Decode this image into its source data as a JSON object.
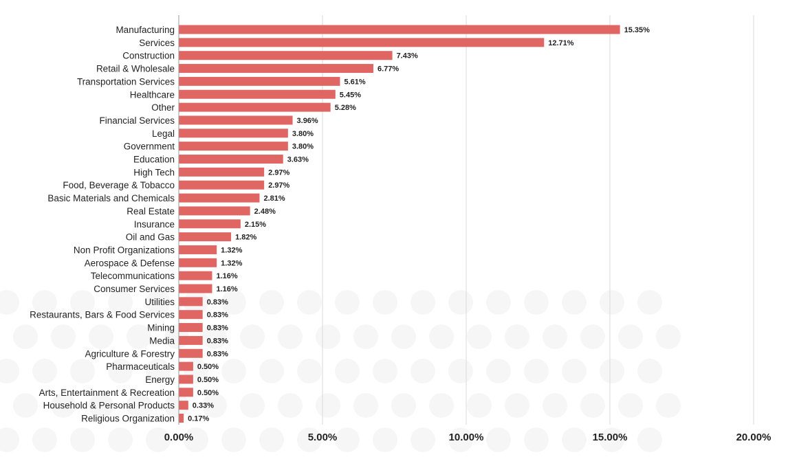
{
  "colors": {
    "bar": "#e06664",
    "grid": "#d9d9d9",
    "axis": "#9a9a9a",
    "text": "#222222"
  },
  "chart_data": {
    "type": "bar",
    "orientation": "horizontal",
    "title": "",
    "xlabel": "",
    "ylabel": "",
    "xlim": [
      0,
      20
    ],
    "x_ticks": [
      0,
      5,
      10,
      15,
      20
    ],
    "x_tick_labels": [
      "0.00%",
      "5.00%",
      "10.00%",
      "15.00%",
      "20.00%"
    ],
    "grid": "vertical",
    "legend": "none",
    "categories": [
      "Manufacturing",
      "Services",
      "Construction",
      "Retail & Wholesale",
      "Transportation Services",
      "Healthcare",
      "Other",
      "Financial Services",
      "Legal",
      "Government",
      "Education",
      "High Tech",
      "Food, Beverage & Tobacco",
      "Basic Materials and Chemicals",
      "Real Estate",
      "Insurance",
      "Oil and Gas",
      "Non Profit Organizations",
      "Aerospace & Defense",
      "Telecommunications",
      "Consumer Services",
      "Utilities",
      "Restaurants, Bars & Food Services",
      "Mining",
      "Media",
      "Agriculture & Forestry",
      "Pharmaceuticals",
      "Energy",
      "Arts, Entertainment & Recreation",
      "Household & Personal Products",
      "Religious Organization"
    ],
    "values": [
      15.35,
      12.71,
      7.43,
      6.77,
      5.61,
      5.45,
      5.28,
      3.96,
      3.8,
      3.8,
      3.63,
      2.97,
      2.97,
      2.81,
      2.48,
      2.15,
      1.82,
      1.32,
      1.32,
      1.16,
      1.16,
      0.83,
      0.83,
      0.83,
      0.83,
      0.83,
      0.5,
      0.5,
      0.5,
      0.33,
      0.17
    ],
    "value_labels": [
      "15.35%",
      "12.71%",
      "7.43%",
      "6.77%",
      "5.61%",
      "5.45%",
      "5.28%",
      "3.96%",
      "3.80%",
      "3.80%",
      "3.63%",
      "2.97%",
      "2.97%",
      "2.81%",
      "2.48%",
      "2.15%",
      "1.82%",
      "1.32%",
      "1.32%",
      "1.16%",
      "1.16%",
      "0.83%",
      "0.83%",
      "0.83%",
      "0.83%",
      "0.83%",
      "0.50%",
      "0.50%",
      "0.50%",
      "0.33%",
      "0.17%"
    ]
  }
}
